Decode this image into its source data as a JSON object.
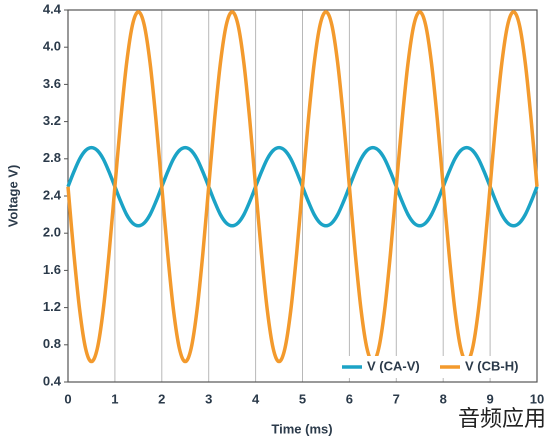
{
  "chart_data": {
    "type": "line",
    "xlabel": "Time (ms)",
    "ylabel": "Voltage V)",
    "x": [
      0,
      0.125,
      0.25,
      0.375,
      0.5,
      0.625,
      0.75,
      0.875,
      1,
      1.125,
      1.25,
      1.375,
      1.5,
      1.625,
      1.75,
      1.875,
      2,
      2.125,
      2.25,
      2.375,
      2.5,
      2.625,
      2.75,
      2.875,
      3,
      3.125,
      3.25,
      3.375,
      3.5,
      3.625,
      3.75,
      3.875,
      4,
      4.125,
      4.25,
      4.375,
      4.5,
      4.625,
      4.75,
      4.875,
      5,
      5.125,
      5.25,
      5.375,
      5.5,
      5.625,
      5.75,
      5.875,
      6,
      6.125,
      6.25,
      6.375,
      6.5,
      6.625,
      6.75,
      6.875,
      7,
      7.125,
      7.25,
      7.375,
      7.5,
      7.625,
      7.75,
      7.875,
      8,
      8.125,
      8.25,
      8.375,
      8.5,
      8.625,
      8.75,
      8.875,
      9,
      9.125,
      9.25,
      9.375,
      9.5,
      9.625,
      9.75,
      9.875,
      10
    ],
    "series": [
      {
        "name": "V (CA-V)",
        "color": "#1ba3c6",
        "values": [
          2.5,
          2.66,
          2.8,
          2.89,
          2.92,
          2.89,
          2.8,
          2.66,
          2.5,
          2.34,
          2.2,
          2.11,
          2.08,
          2.11,
          2.2,
          2.34,
          2.5,
          2.66,
          2.8,
          2.89,
          2.92,
          2.89,
          2.8,
          2.66,
          2.5,
          2.34,
          2.2,
          2.11,
          2.08,
          2.11,
          2.2,
          2.34,
          2.5,
          2.66,
          2.8,
          2.89,
          2.92,
          2.89,
          2.8,
          2.66,
          2.5,
          2.34,
          2.2,
          2.11,
          2.08,
          2.11,
          2.2,
          2.34,
          2.5,
          2.66,
          2.8,
          2.89,
          2.92,
          2.89,
          2.8,
          2.66,
          2.5,
          2.34,
          2.2,
          2.11,
          2.08,
          2.11,
          2.2,
          2.34,
          2.5,
          2.66,
          2.8,
          2.89,
          2.92,
          2.89,
          2.8,
          2.66,
          2.5,
          2.34,
          2.2,
          2.11,
          2.08,
          2.11,
          2.2,
          2.34,
          2.5
        ]
      },
      {
        "name": "V (CB-H)",
        "color": "#f39a2d",
        "values": [
          2.5,
          1.78,
          1.17,
          0.76,
          0.62,
          0.76,
          1.17,
          1.78,
          2.5,
          3.22,
          3.83,
          4.24,
          4.38,
          4.24,
          3.83,
          3.22,
          2.5,
          1.78,
          1.17,
          0.76,
          0.62,
          0.76,
          1.17,
          1.78,
          2.5,
          3.22,
          3.83,
          4.24,
          4.38,
          4.24,
          3.83,
          3.22,
          2.5,
          1.78,
          1.17,
          0.76,
          0.62,
          0.76,
          1.17,
          1.78,
          2.5,
          3.22,
          3.83,
          4.24,
          4.38,
          4.24,
          3.83,
          3.22,
          2.5,
          1.78,
          1.17,
          0.76,
          0.62,
          0.76,
          1.17,
          1.78,
          2.5,
          3.22,
          3.83,
          4.24,
          4.38,
          4.24,
          3.83,
          3.22,
          2.5,
          1.78,
          1.17,
          0.76,
          0.62,
          0.76,
          1.17,
          1.78,
          2.5,
          3.22,
          3.83,
          4.24,
          4.38,
          4.24,
          3.83,
          3.22,
          2.5
        ]
      }
    ],
    "xlim": [
      0,
      10
    ],
    "xticks": [
      0,
      1,
      2,
      3,
      4,
      5,
      6,
      7,
      8,
      9,
      10
    ],
    "ylim": [
      0.4,
      4.4
    ],
    "yticks": [
      0.4,
      0.8,
      1.2,
      1.6,
      {
        "value": 2,
        "label": "2.0"
      },
      2.4,
      2.8,
      3.2,
      3.6,
      {
        "value": 4,
        "label": "4.0"
      },
      4.4
    ],
    "grid": "x",
    "legend": "lower right",
    "watermark": "音频应用"
  }
}
